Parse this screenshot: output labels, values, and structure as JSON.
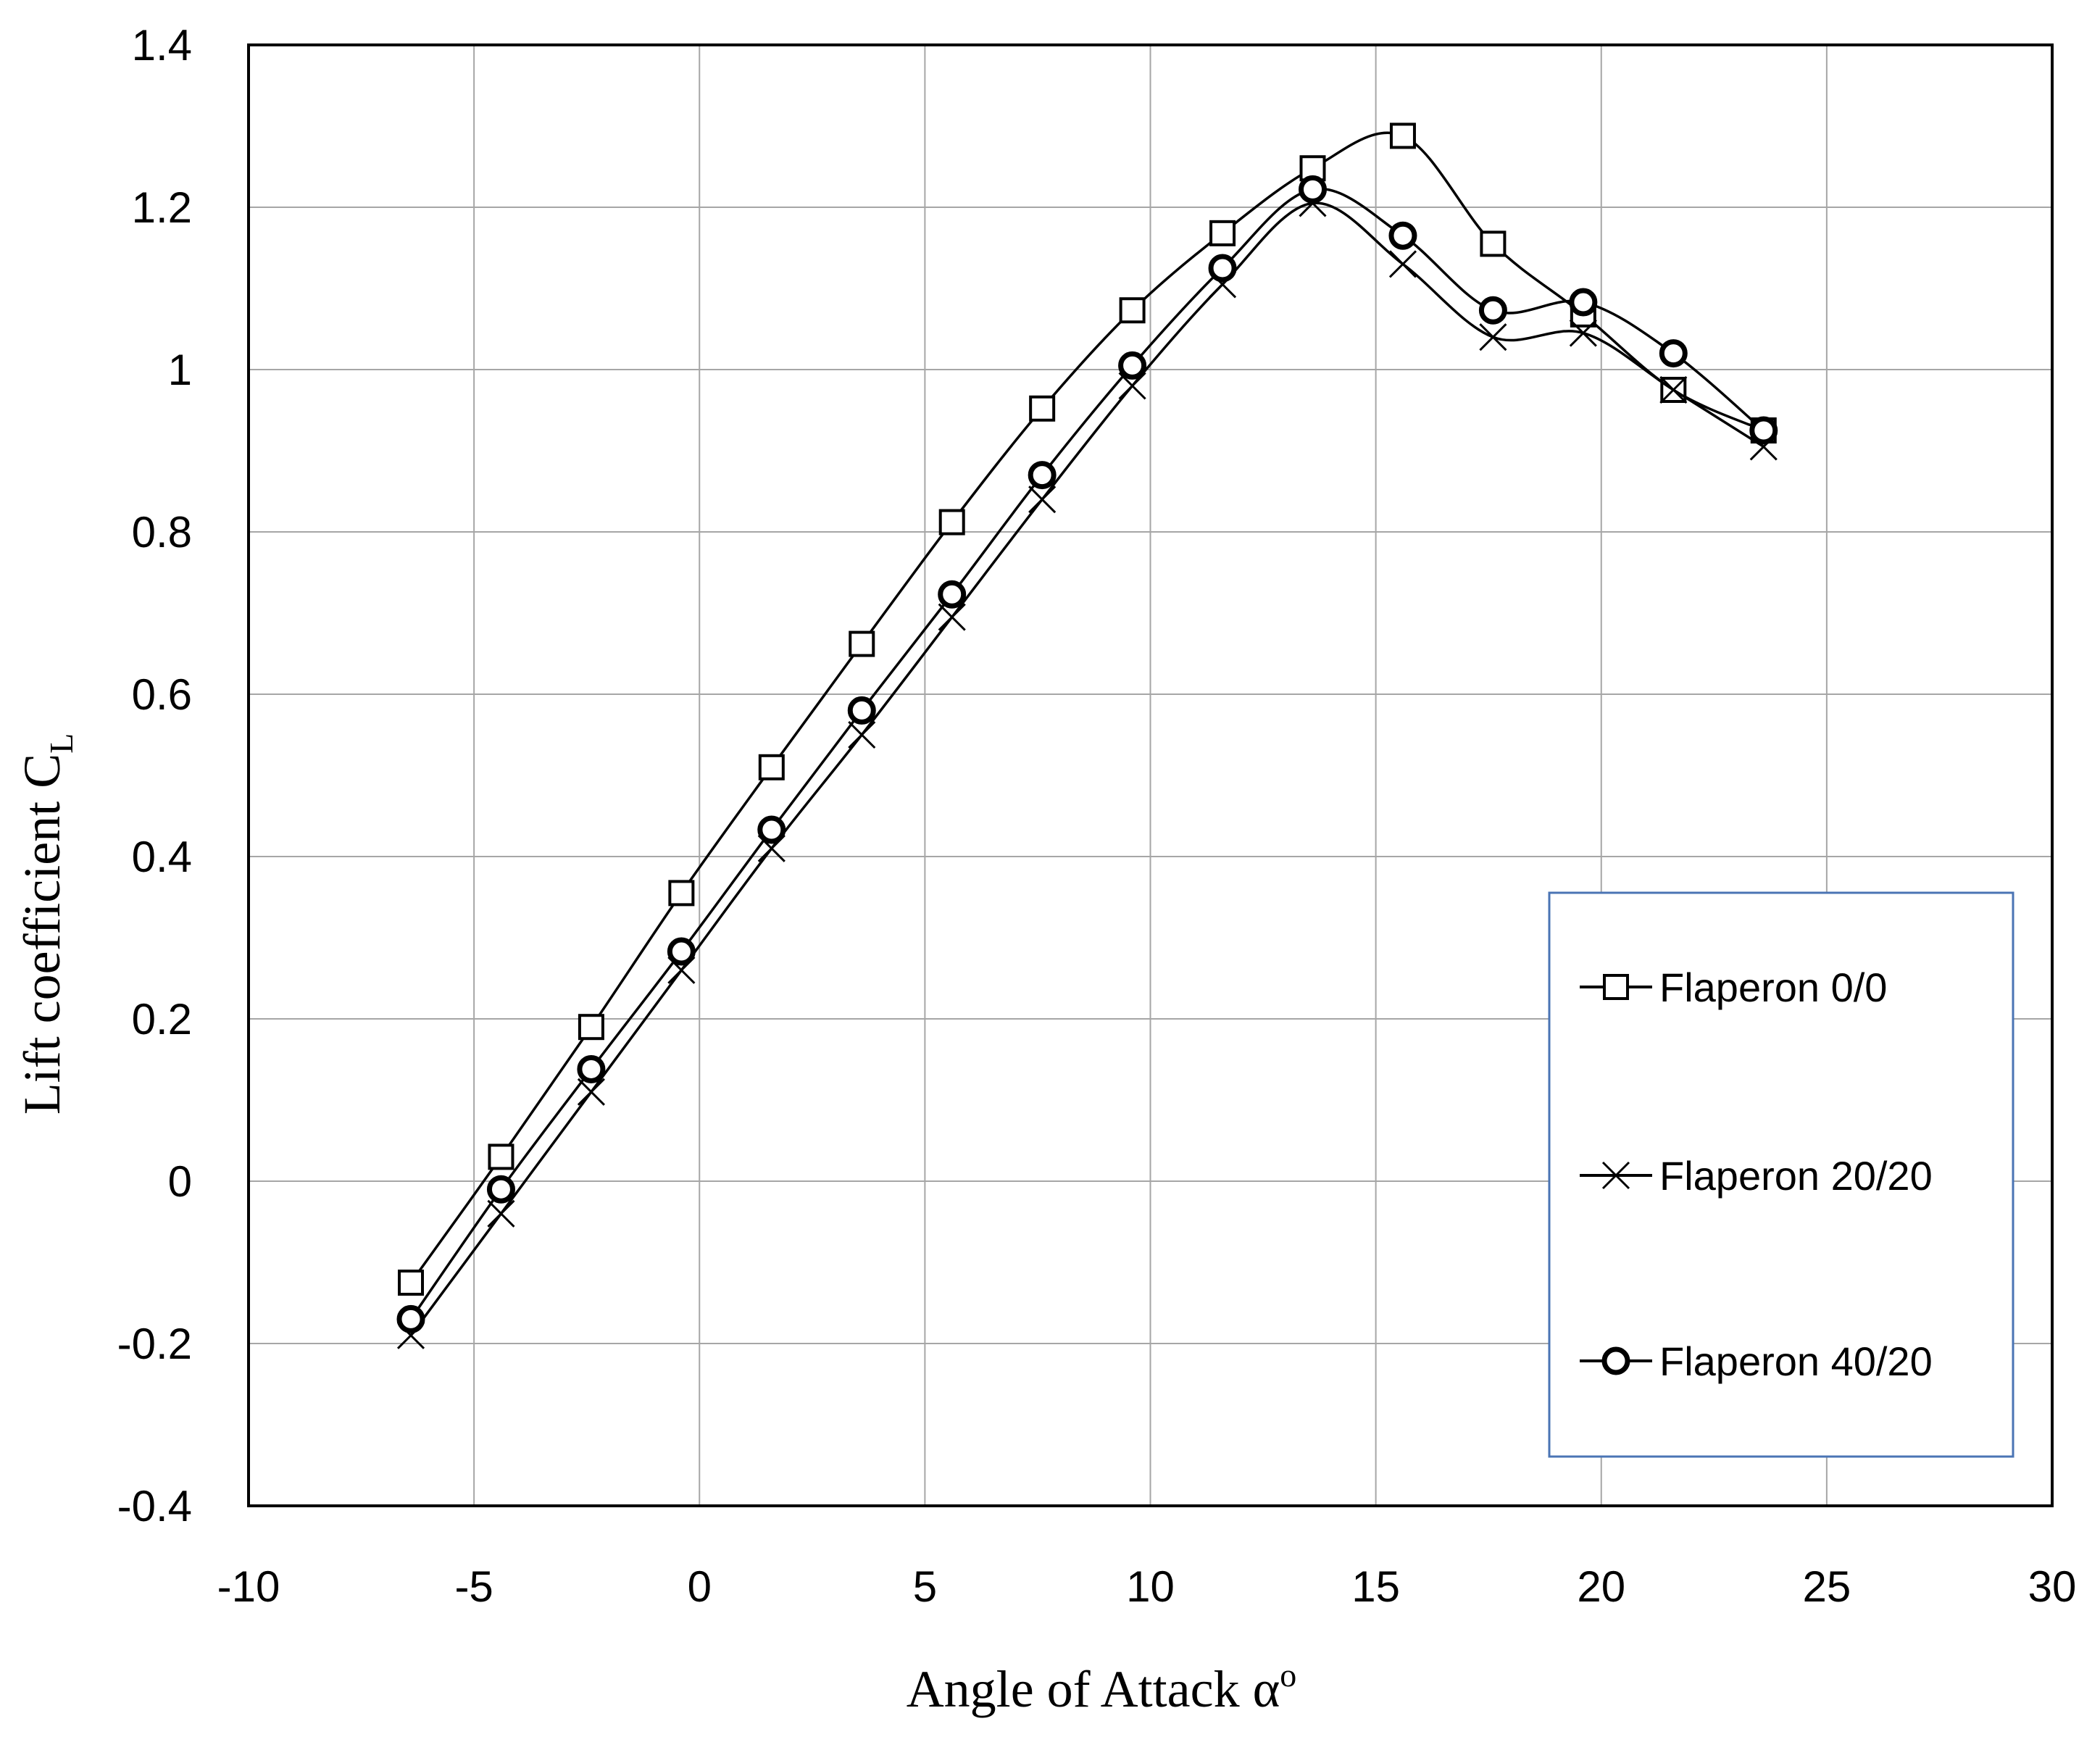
{
  "chart_data": {
    "type": "line",
    "title": "",
    "xlabel": "Angle of Attack α",
    "xlabel_sup": "o",
    "ylabel": "Lift coefficient C",
    "ylabel_sub": "L",
    "xlim": [
      -10,
      30
    ],
    "ylim": [
      -0.4,
      1.4
    ],
    "xticks": [
      -10,
      -5,
      0,
      5,
      10,
      15,
      20,
      25,
      30
    ],
    "yticks": [
      -0.4,
      -0.2,
      0,
      0.2,
      0.4,
      0.6,
      0.8,
      1,
      1.2,
      1.4
    ],
    "xtick_labels": [
      "-10",
      "-5",
      "0",
      "5",
      "10",
      "15",
      "20",
      "25",
      "30"
    ],
    "ytick_labels": [
      "-0.4",
      "-0.2",
      "0",
      "0.2",
      "0.4",
      "0.6",
      "0.8",
      "1",
      "1.2",
      "1.4"
    ],
    "grid": true,
    "legend_position": "right",
    "series": [
      {
        "name": "Flaperon 0/0",
        "marker": "square",
        "x": [
          -6.4,
          -4.4,
          -2.4,
          -0.4,
          1.6,
          3.6,
          5.6,
          7.6,
          9.6,
          11.6,
          13.6,
          15.6,
          17.6,
          19.6,
          21.6,
          23.6
        ],
        "y": [
          -0.125,
          0.03,
          0.19,
          0.355,
          0.51,
          0.662,
          0.812,
          0.952,
          1.073,
          1.168,
          1.248,
          1.288,
          1.155,
          1.068,
          0.975,
          0.925
        ]
      },
      {
        "name": "Flaperon 20/20",
        "marker": "x",
        "x": [
          -6.4,
          -4.4,
          -2.4,
          -0.4,
          1.6,
          3.6,
          5.6,
          7.6,
          9.6,
          11.6,
          13.6,
          15.6,
          17.6,
          19.6,
          21.6,
          23.6
        ],
        "y": [
          -0.19,
          -0.04,
          0.11,
          0.26,
          0.41,
          0.55,
          0.695,
          0.84,
          0.98,
          1.105,
          1.205,
          1.13,
          1.04,
          1.045,
          0.975,
          0.905
        ]
      },
      {
        "name": "Flaperon 40/20",
        "marker": "circle",
        "x": [
          -6.4,
          -4.4,
          -2.4,
          -0.4,
          1.6,
          3.6,
          5.6,
          7.6,
          9.6,
          11.6,
          13.6,
          15.6,
          17.6,
          19.6,
          21.6,
          23.6
        ],
        "y": [
          -0.17,
          -0.01,
          0.138,
          0.283,
          0.433,
          0.58,
          0.723,
          0.87,
          1.005,
          1.125,
          1.222,
          1.165,
          1.073,
          1.083,
          1.02,
          0.925
        ]
      }
    ]
  }
}
